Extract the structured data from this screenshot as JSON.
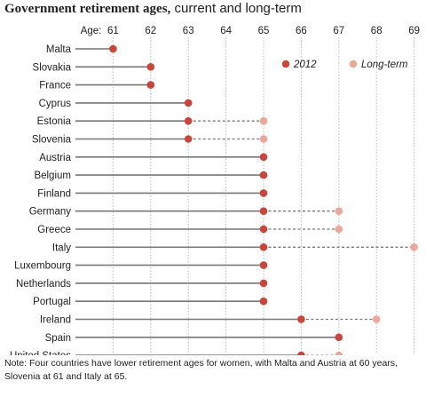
{
  "header": {
    "title_bold": "Government retirement ages,",
    "title_rest": " current and long-term"
  },
  "note": "Note: Four countries have lower retirement ages for women, with Malta and Austria at 60 years, Slovenia at 61 and Italy at 65.",
  "colors": {
    "current": "#c7473a",
    "longterm": "#eba89a",
    "line": "#777777",
    "grid": "#bbbbbb"
  },
  "chart_data": {
    "type": "dot",
    "age_prefix": "Age:",
    "x_ticks": [
      61,
      62,
      63,
      64,
      65,
      66,
      67,
      68,
      69
    ],
    "xlim": [
      60,
      69
    ],
    "legend": [
      {
        "name": "2012",
        "key": "current"
      },
      {
        "name": "Long-term",
        "key": "longterm"
      }
    ],
    "categories": [
      "Malta",
      "Slovakia",
      "France",
      "Cyprus",
      "Estonia",
      "Slovenia",
      "Austria",
      "Belgium",
      "Finland",
      "Germany",
      "Greece",
      "Italy",
      "Luxembourg",
      "Netherlands",
      "Portugal",
      "Ireland",
      "Spain",
      "United States"
    ],
    "series": [
      {
        "name": "2012",
        "values": [
          61,
          62,
          62,
          63,
          63,
          63,
          65,
          65,
          65,
          65,
          65,
          65,
          65,
          65,
          65,
          66,
          67,
          66
        ]
      },
      {
        "name": "Long-term",
        "values": [
          null,
          null,
          null,
          null,
          65,
          65,
          null,
          null,
          null,
          67,
          67,
          69,
          null,
          null,
          null,
          68,
          null,
          67
        ]
      }
    ]
  }
}
